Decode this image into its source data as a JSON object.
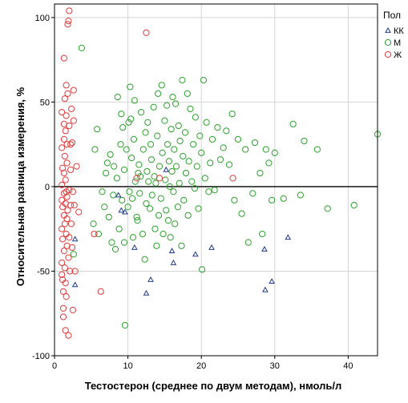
{
  "chart_data": {
    "type": "scatter",
    "xlabel": "Тестостерон (среднее по двум методам), нмоль/л",
    "ylabel": "Относительная разница измерения, %",
    "xlim": [
      0,
      44
    ],
    "ylim": [
      -100,
      108
    ],
    "x_ticks": [
      0,
      10,
      20,
      30,
      40
    ],
    "y_ticks": [
      -100,
      -50,
      0,
      50,
      100
    ],
    "x_tick_labels": [
      "0",
      "10",
      "20",
      "30",
      "40"
    ],
    "y_tick_labels": [
      "-100",
      "-50",
      "0",
      "50",
      "100"
    ],
    "grid": true,
    "reference_line_y": 0,
    "legend": {
      "title": "Пол",
      "position": "top-right",
      "entries": [
        {
          "label": "КК",
          "marker": "triangle",
          "color": "#1f3a8a"
        },
        {
          "label": "М",
          "marker": "circle",
          "color": "#2ca02c"
        },
        {
          "label": "Ж",
          "marker": "circle",
          "color": "#e03a3a"
        }
      ]
    },
    "series": [
      {
        "name": "КК",
        "marker": "triangle",
        "color": "#1f3a8a",
        "points": [
          [
            2.8,
            -31
          ],
          [
            2.8,
            -58
          ],
          [
            8.7,
            -5
          ],
          [
            9.1,
            -14
          ],
          [
            9.6,
            -15
          ],
          [
            10.9,
            -36
          ],
          [
            12.5,
            -63
          ],
          [
            13.1,
            -55
          ],
          [
            15.2,
            10
          ],
          [
            16.0,
            -38
          ],
          [
            16.2,
            -45
          ],
          [
            19.2,
            -40
          ],
          [
            21.4,
            -36
          ],
          [
            28.6,
            -37
          ],
          [
            28.7,
            -61
          ],
          [
            29.6,
            -56
          ],
          [
            31.8,
            -30
          ]
        ]
      },
      {
        "name": "М",
        "marker": "circle",
        "color": "#2ca02c",
        "points": [
          [
            2.6,
            -40
          ],
          [
            3.7,
            82
          ],
          [
            5.3,
            -22
          ],
          [
            5.5,
            22
          ],
          [
            5.8,
            34
          ],
          [
            6.0,
            -28
          ],
          [
            6.5,
            -3
          ],
          [
            6.8,
            -12
          ],
          [
            7.0,
            8
          ],
          [
            7.2,
            14
          ],
          [
            7.4,
            -18
          ],
          [
            7.6,
            19
          ],
          [
            7.8,
            -33
          ],
          [
            8.0,
            -5
          ],
          [
            8.1,
            12
          ],
          [
            8.3,
            -37
          ],
          [
            8.5,
            5
          ],
          [
            8.6,
            53
          ],
          [
            8.8,
            -25
          ],
          [
            9.0,
            25
          ],
          [
            9.1,
            43
          ],
          [
            9.2,
            -8
          ],
          [
            9.3,
            35
          ],
          [
            9.5,
            -33
          ],
          [
            9.5,
            10
          ],
          [
            9.6,
            -82
          ],
          [
            9.8,
            22
          ],
          [
            10.0,
            -12
          ],
          [
            10.1,
            38
          ],
          [
            10.2,
            -3
          ],
          [
            10.3,
            59
          ],
          [
            10.4,
            40
          ],
          [
            10.5,
            17
          ],
          [
            10.6,
            -7
          ],
          [
            10.7,
            -30
          ],
          [
            10.8,
            28
          ],
          [
            10.9,
            51
          ],
          [
            11.0,
            3
          ],
          [
            11.2,
            -18
          ],
          [
            11.3,
            -20
          ],
          [
            11.4,
            8
          ],
          [
            11.5,
            13
          ],
          [
            11.6,
            -4
          ],
          [
            11.7,
            6
          ],
          [
            11.8,
            44
          ],
          [
            12.0,
            -28
          ],
          [
            12.1,
            22
          ],
          [
            12.3,
            -43
          ],
          [
            12.4,
            32
          ],
          [
            12.5,
            -10
          ],
          [
            12.6,
            9
          ],
          [
            12.7,
            38
          ],
          [
            12.8,
            3
          ],
          [
            13.0,
            -13
          ],
          [
            13.1,
            25
          ],
          [
            13.2,
            16
          ],
          [
            13.3,
            -5
          ],
          [
            13.5,
            47
          ],
          [
            13.6,
            6
          ],
          [
            13.7,
            -25
          ],
          [
            13.8,
            2
          ],
          [
            13.9,
            -35
          ],
          [
            14.0,
            30
          ],
          [
            14.1,
            55
          ],
          [
            14.2,
            -17
          ],
          [
            14.3,
            12
          ],
          [
            14.5,
            -7
          ],
          [
            14.6,
            60
          ],
          [
            14.7,
            20
          ],
          [
            14.8,
            -28
          ],
          [
            15.0,
            39
          ],
          [
            15.1,
            4
          ],
          [
            15.2,
            -14
          ],
          [
            15.3,
            48
          ],
          [
            15.4,
            25
          ],
          [
            15.5,
            -20
          ],
          [
            15.6,
            15
          ],
          [
            15.7,
            0
          ],
          [
            15.8,
            -30
          ],
          [
            15.9,
            34
          ],
          [
            16.0,
            9
          ],
          [
            16.1,
            53
          ],
          [
            16.2,
            -3
          ],
          [
            16.3,
            22
          ],
          [
            16.4,
            -22
          ],
          [
            16.5,
            49
          ],
          [
            16.6,
            12
          ],
          [
            16.8,
            -12
          ],
          [
            16.9,
            36
          ],
          [
            17.0,
            2
          ],
          [
            17.1,
            27
          ],
          [
            17.3,
            -35
          ],
          [
            17.4,
            63
          ],
          [
            17.5,
            18
          ],
          [
            17.6,
            -8
          ],
          [
            17.8,
            32
          ],
          [
            17.9,
            8
          ],
          [
            18.1,
            55
          ],
          [
            18.2,
            -17
          ],
          [
            18.3,
            15
          ],
          [
            18.5,
            46
          ],
          [
            18.7,
            3
          ],
          [
            18.9,
            25
          ],
          [
            19.1,
            -1
          ],
          [
            19.2,
            41
          ],
          [
            19.4,
            12
          ],
          [
            19.6,
            -13
          ],
          [
            19.8,
            30
          ],
          [
            20.0,
            20
          ],
          [
            20.1,
            -49
          ],
          [
            20.3,
            63
          ],
          [
            20.5,
            5
          ],
          [
            20.7,
            38
          ],
          [
            21.0,
            -3
          ],
          [
            21.2,
            14
          ],
          [
            21.5,
            28
          ],
          [
            21.8,
            -2
          ],
          [
            22.2,
            35
          ],
          [
            22.6,
            16
          ],
          [
            23.0,
            23
          ],
          [
            23.4,
            33
          ],
          [
            23.8,
            13
          ],
          [
            24.2,
            43
          ],
          [
            24.5,
            -8
          ],
          [
            25.0,
            28
          ],
          [
            25.5,
            -16
          ],
          [
            26.0,
            22
          ],
          [
            26.4,
            -33
          ],
          [
            27.0,
            -4
          ],
          [
            27.3,
            26
          ],
          [
            28.0,
            8
          ],
          [
            28.3,
            -28
          ],
          [
            28.8,
            22
          ],
          [
            29.2,
            14
          ],
          [
            29.6,
            -8
          ],
          [
            30.0,
            20
          ],
          [
            31.2,
            -7
          ],
          [
            32.5,
            37
          ],
          [
            33.5,
            -5
          ],
          [
            34.0,
            27
          ],
          [
            35.8,
            22
          ],
          [
            37.2,
            -13
          ],
          [
            40.8,
            -11
          ],
          [
            44.0,
            31
          ]
        ]
      },
      {
        "name": "Ж",
        "marker": "circle",
        "color": "#e03a3a",
        "points": [
          [
            1.0,
            44
          ],
          [
            1.0,
            23
          ],
          [
            1.0,
            1
          ],
          [
            1.0,
            -8
          ],
          [
            1.0,
            -25
          ],
          [
            1.0,
            -45
          ],
          [
            1.0,
            -52
          ],
          [
            1.1,
            11
          ],
          [
            1.1,
            -12
          ],
          [
            1.1,
            -31
          ],
          [
            1.1,
            -55
          ],
          [
            1.2,
            -62
          ],
          [
            1.2,
            -72
          ],
          [
            1.2,
            -77
          ],
          [
            1.3,
            76
          ],
          [
            1.3,
            37
          ],
          [
            1.3,
            28
          ],
          [
            1.3,
            8
          ],
          [
            1.3,
            -4
          ],
          [
            1.3,
            -17
          ],
          [
            1.3,
            -38
          ],
          [
            1.4,
            52
          ],
          [
            1.4,
            18
          ],
          [
            1.4,
            -22
          ],
          [
            1.4,
            -48
          ],
          [
            1.5,
            33
          ],
          [
            1.5,
            4
          ],
          [
            1.5,
            -10
          ],
          [
            1.5,
            -57
          ],
          [
            1.5,
            -85
          ],
          [
            1.6,
            60
          ],
          [
            1.6,
            42
          ],
          [
            1.6,
            -3
          ],
          [
            1.6,
            -28
          ],
          [
            1.6,
            -65
          ],
          [
            1.7,
            25
          ],
          [
            1.7,
            14
          ],
          [
            1.7,
            -6
          ],
          [
            1.7,
            -19
          ],
          [
            1.7,
            -35
          ],
          [
            1.8,
            96
          ],
          [
            1.8,
            55
          ],
          [
            1.8,
            -14
          ],
          [
            1.9,
            98
          ],
          [
            1.9,
            -42
          ],
          [
            1.9,
            -88
          ],
          [
            2.0,
            104
          ],
          [
            2.0,
            36
          ],
          [
            2.0,
            -2
          ],
          [
            2.0,
            -30
          ],
          [
            2.1,
            -50
          ],
          [
            2.2,
            25
          ],
          [
            2.2,
            10
          ],
          [
            2.2,
            -11
          ],
          [
            2.3,
            46
          ],
          [
            2.3,
            -22
          ],
          [
            2.4,
            26
          ],
          [
            2.4,
            -36
          ],
          [
            2.5,
            -3
          ],
          [
            2.5,
            -73
          ],
          [
            2.6,
            39
          ],
          [
            2.6,
            57
          ],
          [
            2.7,
            -11
          ],
          [
            2.8,
            -50
          ],
          [
            3.0,
            12
          ],
          [
            3.3,
            -15
          ],
          [
            5.4,
            -28
          ],
          [
            6.3,
            -62
          ],
          [
            11.2,
            5
          ],
          [
            12.5,
            91
          ],
          [
            14.3,
            5
          ],
          [
            24.3,
            5
          ]
        ]
      }
    ]
  }
}
